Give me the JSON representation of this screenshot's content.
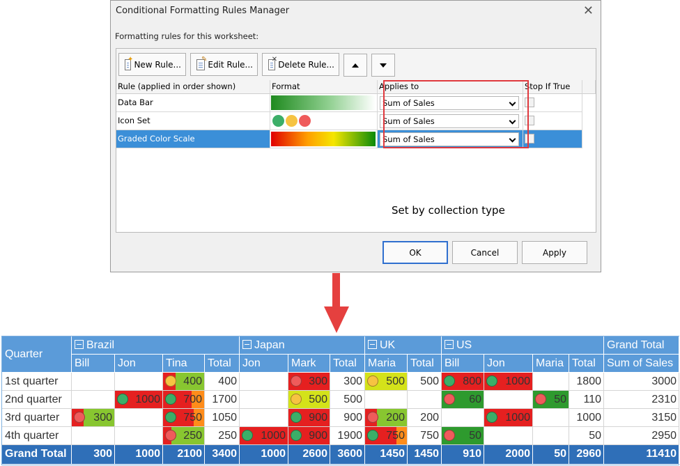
{
  "dialog": {
    "title": "Conditional Formatting Rules Manager",
    "close_glyph": "✕",
    "subtitle": "Formatting rules for this worksheet:",
    "toolbar": {
      "new_rule": "New Rule...",
      "edit_rule": "Edit Rule...",
      "delete_rule": "Delete Rule...",
      "move_up_icon": "triangle-up-icon",
      "move_down_icon": "triangle-down-icon"
    },
    "columns": [
      "Rule (applied in order shown)",
      "Format",
      "Applies to",
      "Stop If True"
    ],
    "rules": [
      {
        "name": "Data Bar",
        "format": "data-bar",
        "applies_to": "Sum of Sales",
        "stop_if_true": false,
        "selected": false
      },
      {
        "name": "Icon Set",
        "format": "icon-set",
        "applies_to": "Sum of Sales",
        "stop_if_true": false,
        "selected": false
      },
      {
        "name": "Graded Color Scale",
        "format": "color-scale",
        "applies_to": "Sum of Sales",
        "stop_if_true": false,
        "selected": true
      }
    ],
    "icon_set_colors": [
      "#3cae68",
      "#f6c342",
      "#ef5b5b"
    ],
    "annotation": "Set by collection type",
    "buttons": {
      "ok": "OK",
      "cancel": "Cancel",
      "apply": "Apply"
    }
  },
  "pivot": {
    "corner_label": "Quarter",
    "groups": [
      "Brazil",
      "Japan",
      "UK",
      "US"
    ],
    "grand_total_header": "Grand Total",
    "columns": [
      "Bill",
      "Jon",
      "Tina",
      "Total",
      "Jon",
      "Mark",
      "Total",
      "Maria",
      "Total",
      "Bill",
      "Jon",
      "Maria",
      "Total",
      "Sum of Sales"
    ],
    "rows": [
      {
        "label": "1st quarter",
        "cells": [
          "",
          "",
          "400",
          "400",
          "",
          "300",
          "300",
          "500",
          "500",
          "800",
          "1000",
          "",
          "1800",
          "3000"
        ]
      },
      {
        "label": "2nd quarter",
        "cells": [
          "",
          "1000",
          "700",
          "1700",
          "",
          "500",
          "500",
          "",
          "",
          "60",
          "",
          "50",
          "110",
          "2310"
        ]
      },
      {
        "label": "3rd quarter",
        "cells": [
          "300",
          "",
          "750",
          "1050",
          "",
          "900",
          "900",
          "200",
          "200",
          "",
          "1000",
          "",
          "1000",
          "3150"
        ]
      },
      {
        "label": "4th quarter",
        "cells": [
          "",
          "",
          "250",
          "250",
          "1000",
          "900",
          "1900",
          "750",
          "750",
          "50",
          "",
          "",
          "50",
          "2950"
        ]
      }
    ],
    "grand_total_label": "Grand Total",
    "grand_total_cells": [
      "300",
      "1000",
      "2100",
      "3400",
      "1000",
      "2600",
      "3600",
      "1450",
      "1450",
      "910",
      "2000",
      "50",
      "2960",
      "11410"
    ],
    "formatting": {
      "cells": [
        [
          null,
          null,
          {
            "bg": "#88c630",
            "bar": "#e52020",
            "bar_frac": 0.3,
            "icon": "#f6c342"
          },
          null,
          null,
          {
            "bg": "#e52020",
            "bar": "#88c630",
            "bar_frac": 0.0,
            "icon": "#ef5b5b"
          },
          null,
          {
            "bg": "#d4e21a",
            "bar": "#d4e21a",
            "bar_frac": 0.0,
            "icon": "#f6c342"
          },
          null,
          {
            "bg": "#e52020",
            "bar": "#e52020",
            "bar_frac": 0.0,
            "icon": "#3cae68"
          },
          {
            "bg": "#e52020",
            "bar": "#e52020",
            "bar_frac": 0.0,
            "icon": "#3cae68"
          },
          null,
          null,
          null
        ],
        [
          null,
          {
            "bg": "#e52020",
            "bar": "#e52020",
            "bar_frac": 0.0,
            "icon": "#3cae68"
          },
          {
            "bg": "#ff8c1a",
            "bar": "#e52020",
            "bar_frac": 0.7,
            "icon": "#3cae68"
          },
          null,
          null,
          {
            "bg": "#d4e21a",
            "bar": "#d4e21a",
            "bar_frac": 0.0,
            "icon": "#f6c342"
          },
          null,
          null,
          null,
          {
            "bg": "#2e9a2e",
            "bar": "#2e9a2e",
            "bar_frac": 0.0,
            "icon": "#ef5b5b"
          },
          null,
          {
            "bg": "#2e9a2e",
            "bar": "#2e9a2e",
            "bar_frac": 0.0,
            "icon": "#ef5b5b"
          },
          null,
          null
        ],
        [
          {
            "bg": "#88c630",
            "bar": "#e52020",
            "bar_frac": 0.28,
            "icon": "#ef5b5b"
          },
          null,
          {
            "bg": "#ff8c1a",
            "bar": "#e52020",
            "bar_frac": 0.75,
            "icon": "#3cae68"
          },
          null,
          null,
          {
            "bg": "#e52020",
            "bar": "#e52020",
            "bar_frac": 0.0,
            "icon": "#3cae68"
          },
          null,
          {
            "bg": "#88c630",
            "bar": "#e52020",
            "bar_frac": 0.28,
            "icon": "#ef5b5b"
          },
          null,
          null,
          {
            "bg": "#e52020",
            "bar": "#e52020",
            "bar_frac": 0.0,
            "icon": "#3cae68"
          },
          null,
          null,
          null
        ],
        [
          null,
          null,
          {
            "bg": "#88c630",
            "bar": "#e52020",
            "bar_frac": 0.2,
            "icon": "#ef5b5b"
          },
          null,
          {
            "bg": "#e52020",
            "bar": "#e52020",
            "bar_frac": 0.0,
            "icon": "#3cae68"
          },
          {
            "bg": "#e52020",
            "bar": "#e52020",
            "bar_frac": 0.0,
            "icon": "#3cae68"
          },
          null,
          {
            "bg": "#ff8c1a",
            "bar": "#e52020",
            "bar_frac": 0.75,
            "icon": "#3cae68"
          },
          null,
          {
            "bg": "#2e9a2e",
            "bar": "#2e9a2e",
            "bar_frac": 0.0,
            "icon": "#ef5b5b"
          },
          null,
          null,
          null,
          null
        ]
      ]
    }
  }
}
